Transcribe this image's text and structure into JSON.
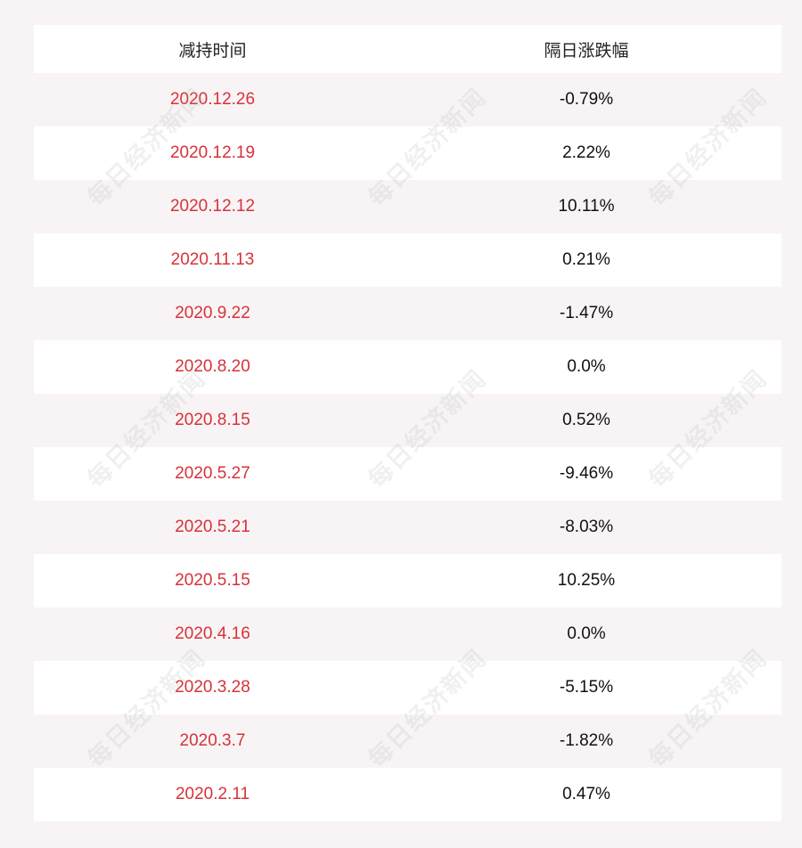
{
  "table": {
    "headers": {
      "date": "减持时间",
      "change": "隔日涨跌幅"
    },
    "rows": [
      {
        "date": "2020.12.26",
        "change": "-0.79%"
      },
      {
        "date": "2020.12.19",
        "change": "2.22%"
      },
      {
        "date": "2020.12.12",
        "change": "10.11%"
      },
      {
        "date": "2020.11.13",
        "change": "0.21%"
      },
      {
        "date": "2020.9.22",
        "change": "-1.47%"
      },
      {
        "date": "2020.8.20",
        "change": "0.0%"
      },
      {
        "date": "2020.8.15",
        "change": "0.52%"
      },
      {
        "date": "2020.5.27",
        "change": "-9.46%"
      },
      {
        "date": "2020.5.21",
        "change": "-8.03%"
      },
      {
        "date": "2020.5.15",
        "change": "10.25%"
      },
      {
        "date": "2020.4.16",
        "change": "0.0%"
      },
      {
        "date": "2020.3.28",
        "change": "-5.15%"
      },
      {
        "date": "2020.3.7",
        "change": "-1.82%"
      },
      {
        "date": "2020.2.11",
        "change": "0.47%"
      }
    ]
  },
  "watermark": {
    "text": "每日经济新闻"
  },
  "colors": {
    "date_text": "#d8313a",
    "change_text": "#111111",
    "row_alt": "#f8f4f5",
    "row_base": "#ffffff"
  }
}
